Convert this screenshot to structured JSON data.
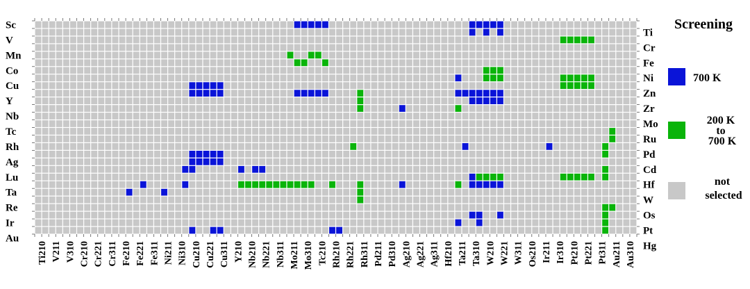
{
  "chart_data": {
    "type": "heatmap",
    "title": "",
    "xlabel": "",
    "ylabel": "",
    "columns": 86,
    "rows_count": 28,
    "left_labels": [
      "Sc",
      "V",
      "Mn",
      "Co",
      "Cu",
      "Y",
      "Nb",
      "Tc",
      "Rh",
      "Ag",
      "Lu",
      "Ta",
      "Re",
      "Ir",
      "Au"
    ],
    "right_labels": [
      "Ti",
      "Cr",
      "Fe",
      "Ni",
      "Zn",
      "Zr",
      "Mo",
      "Ru",
      "Pd",
      "Cd",
      "Hf",
      "W",
      "Os",
      "Pt",
      "Hg"
    ],
    "x_tick_labels": [
      "Ti210",
      "V211",
      "V310",
      "Cr210",
      "Cr221",
      "Cr311",
      "Fe210",
      "Fe221",
      "Fe311",
      "Ni211",
      "Ni310",
      "Cu210",
      "Cu221",
      "Cu311",
      "Y210",
      "Nb210",
      "Nb221",
      "Nb311",
      "Mo211",
      "Mo310",
      "Tc210",
      "Rh210",
      "Rh221",
      "Rh311",
      "Pd211",
      "Pd310",
      "Ag210",
      "Ag221",
      "Ag311",
      "Hf210",
      "Ta211",
      "Ta310",
      "W210",
      "W221",
      "W311",
      "Os210",
      "Ir211",
      "Ir310",
      "Pt210",
      "Pt221",
      "Pt311",
      "Au211",
      "Au310"
    ],
    "legend": {
      "title": "Screening",
      "entries": [
        {
          "label": "700 K",
          "color": "#0a14d8"
        },
        {
          "label": "200 K to 700 K",
          "color": "#0ab40a"
        },
        {
          "label": "not selected",
          "color": "#c8c8c8"
        }
      ]
    },
    "colors": {
      "blue": "#0a14d8",
      "green": "#0ab40a",
      "gray": "#c8c8c8"
    },
    "grid": true,
    "cells_700K": [
      [
        0,
        37
      ],
      [
        0,
        38
      ],
      [
        0,
        39
      ],
      [
        0,
        40
      ],
      [
        0,
        41
      ],
      [
        0,
        62
      ],
      [
        0,
        63
      ],
      [
        0,
        64
      ],
      [
        0,
        65
      ],
      [
        0,
        66
      ],
      [
        0,
        89
      ],
      [
        0,
        99
      ],
      [
        1,
        62
      ],
      [
        1,
        64
      ],
      [
        1,
        66
      ],
      [
        6,
        99
      ],
      [
        6,
        100
      ],
      [
        7,
        60
      ],
      [
        7,
        98
      ],
      [
        8,
        22
      ],
      [
        8,
        23
      ],
      [
        8,
        24
      ],
      [
        8,
        25
      ],
      [
        8,
        26
      ],
      [
        8,
        97
      ],
      [
        8,
        98
      ],
      [
        9,
        22
      ],
      [
        9,
        23
      ],
      [
        9,
        24
      ],
      [
        9,
        25
      ],
      [
        9,
        26
      ],
      [
        9,
        37
      ],
      [
        9,
        38
      ],
      [
        9,
        39
      ],
      [
        9,
        40
      ],
      [
        9,
        41
      ],
      [
        9,
        60
      ],
      [
        9,
        61
      ],
      [
        9,
        62
      ],
      [
        9,
        63
      ],
      [
        9,
        64
      ],
      [
        9,
        65
      ],
      [
        9,
        66
      ],
      [
        9,
        97
      ],
      [
        10,
        62
      ],
      [
        10,
        63
      ],
      [
        10,
        64
      ],
      [
        10,
        65
      ],
      [
        10,
        66
      ],
      [
        11,
        52
      ],
      [
        11,
        96
      ],
      [
        15,
        96
      ],
      [
        15,
        102
      ],
      [
        15,
        104
      ],
      [
        16,
        61
      ],
      [
        16,
        73
      ],
      [
        16,
        92
      ],
      [
        17,
        22
      ],
      [
        17,
        23
      ],
      [
        17,
        24
      ],
      [
        17,
        25
      ],
      [
        17,
        26
      ],
      [
        18,
        22
      ],
      [
        18,
        23
      ],
      [
        18,
        24
      ],
      [
        18,
        25
      ],
      [
        18,
        26
      ],
      [
        19,
        21
      ],
      [
        19,
        22
      ],
      [
        19,
        29
      ],
      [
        19,
        31
      ],
      [
        19,
        32
      ],
      [
        20,
        62
      ],
      [
        20,
        63
      ],
      [
        20,
        64
      ],
      [
        20,
        65
      ],
      [
        20,
        66
      ],
      [
        21,
        15
      ],
      [
        21,
        21
      ],
      [
        21,
        52
      ],
      [
        21,
        62
      ],
      [
        21,
        63
      ],
      [
        21,
        64
      ],
      [
        21,
        65
      ],
      [
        21,
        66
      ],
      [
        21,
        91
      ],
      [
        22,
        13
      ],
      [
        22,
        18
      ],
      [
        23,
        86
      ],
      [
        23,
        87
      ],
      [
        23,
        89
      ],
      [
        25,
        62
      ],
      [
        25,
        63
      ],
      [
        25,
        66
      ],
      [
        26,
        60
      ],
      [
        26,
        63
      ],
      [
        27,
        22
      ],
      [
        27,
        25
      ],
      [
        27,
        26
      ],
      [
        27,
        42
      ],
      [
        27,
        43
      ]
    ],
    "cells_200_700K": [
      [
        2,
        75
      ],
      [
        2,
        76
      ],
      [
        2,
        77
      ],
      [
        2,
        78
      ],
      [
        2,
        79
      ],
      [
        4,
        36
      ],
      [
        4,
        39
      ],
      [
        4,
        40
      ],
      [
        5,
        37
      ],
      [
        5,
        38
      ],
      [
        5,
        41
      ],
      [
        6,
        64
      ],
      [
        6,
        65
      ],
      [
        6,
        66
      ],
      [
        6,
        114
      ],
      [
        6,
        115
      ],
      [
        6,
        116
      ],
      [
        6,
        117
      ],
      [
        6,
        118
      ],
      [
        7,
        64
      ],
      [
        7,
        65
      ],
      [
        7,
        66
      ],
      [
        7,
        75
      ],
      [
        7,
        76
      ],
      [
        7,
        77
      ],
      [
        7,
        78
      ],
      [
        7,
        79
      ],
      [
        7,
        115
      ],
      [
        7,
        116
      ],
      [
        8,
        75
      ],
      [
        8,
        76
      ],
      [
        8,
        77
      ],
      [
        8,
        78
      ],
      [
        8,
        79
      ],
      [
        9,
        46
      ],
      [
        10,
        46
      ],
      [
        10,
        100
      ],
      [
        10,
        101
      ],
      [
        10,
        102
      ],
      [
        10,
        103
      ],
      [
        10,
        104
      ],
      [
        10,
        105
      ],
      [
        10,
        106
      ],
      [
        11,
        46
      ],
      [
        11,
        60
      ],
      [
        14,
        82
      ],
      [
        15,
        82
      ],
      [
        16,
        45
      ],
      [
        16,
        81
      ],
      [
        17,
        81
      ],
      [
        17,
        114
      ],
      [
        17,
        115
      ],
      [
        17,
        116
      ],
      [
        17,
        117
      ],
      [
        17,
        118
      ],
      [
        18,
        114
      ],
      [
        18,
        115
      ],
      [
        18,
        116
      ],
      [
        18,
        117
      ],
      [
        18,
        118
      ],
      [
        19,
        81
      ],
      [
        19,
        117
      ],
      [
        20,
        63
      ],
      [
        20,
        64
      ],
      [
        20,
        65
      ],
      [
        20,
        66
      ],
      [
        20,
        75
      ],
      [
        20,
        76
      ],
      [
        20,
        77
      ],
      [
        20,
        78
      ],
      [
        20,
        79
      ],
      [
        20,
        81
      ],
      [
        20,
        99
      ],
      [
        20,
        114
      ],
      [
        20,
        115
      ],
      [
        20,
        116
      ],
      [
        20,
        117
      ],
      [
        20,
        118
      ],
      [
        21,
        29
      ],
      [
        21,
        30
      ],
      [
        21,
        31
      ],
      [
        21,
        32
      ],
      [
        21,
        33
      ],
      [
        21,
        34
      ],
      [
        21,
        35
      ],
      [
        21,
        36
      ],
      [
        21,
        37
      ],
      [
        21,
        38
      ],
      [
        21,
        39
      ],
      [
        21,
        42
      ],
      [
        21,
        46
      ],
      [
        21,
        60
      ],
      [
        21,
        99
      ],
      [
        22,
        46
      ],
      [
        23,
        46
      ],
      [
        24,
        81
      ],
      [
        24,
        82
      ],
      [
        25,
        81
      ],
      [
        26,
        81
      ],
      [
        27,
        81
      ],
      [
        29,
        46
      ],
      [
        30,
        36
      ],
      [
        30,
        37
      ],
      [
        30,
        38
      ],
      [
        30,
        39
      ],
      [
        30,
        40
      ],
      [
        30,
        41
      ],
      [
        30,
        75
      ],
      [
        30,
        76
      ],
      [
        30,
        77
      ],
      [
        30,
        78
      ],
      [
        30,
        79
      ],
      [
        30,
        114
      ],
      [
        30,
        115
      ],
      [
        30,
        116
      ],
      [
        30,
        117
      ],
      [
        30,
        118
      ],
      [
        31,
        97
      ],
      [
        31,
        98
      ],
      [
        31,
        99
      ],
      [
        31,
        100
      ],
      [
        31,
        101
      ],
      [
        31,
        102
      ],
      [
        31,
        103
      ],
      [
        31,
        104
      ],
      [
        31,
        105
      ],
      [
        32,
        60
      ]
    ]
  }
}
